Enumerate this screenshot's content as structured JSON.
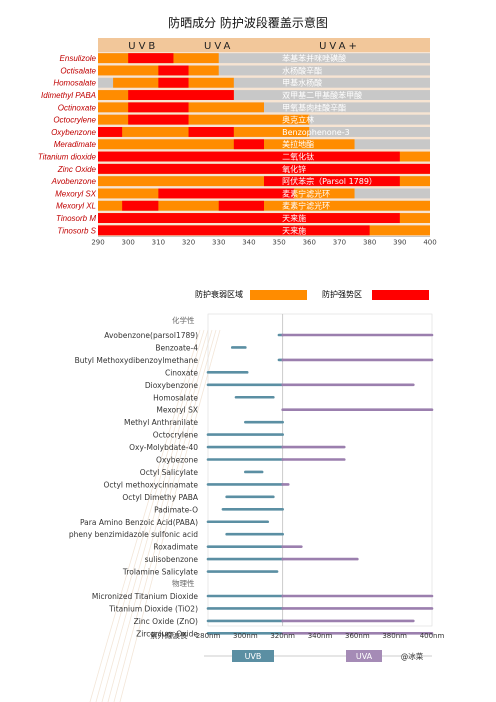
{
  "title": "防晒成分  防护波段覆盖示意图",
  "chart_data": [
    {
      "type": "bar",
      "subtype": "range-gantt",
      "band_headers": [
        {
          "label": "UVB",
          "from": 290,
          "to": 320
        },
        {
          "label": "UVA",
          "from": 320,
          "to": 340
        },
        {
          "label": "UVA+",
          "from": 340,
          "to": 400
        }
      ],
      "x_ticks": [
        290,
        300,
        310,
        320,
        330,
        340,
        350,
        360,
        370,
        380,
        390,
        400
      ],
      "xlim": [
        290,
        400
      ],
      "legend": [
        {
          "label": "防护衰弱区域",
          "color": "#ff8c00"
        },
        {
          "label": "防护强势区",
          "color": "#ff0000"
        }
      ],
      "rows": [
        {
          "name": "Ensulizole",
          "cn": "苯基苯并咪唑磺酸",
          "weak": [
            [
              290,
              330
            ]
          ],
          "strong": [
            [
              300,
              315
            ]
          ]
        },
        {
          "name": "Octisalate",
          "cn": "水杨酸辛酯",
          "weak": [
            [
              290,
              330
            ]
          ],
          "strong": [
            [
              310,
              320
            ]
          ]
        },
        {
          "name": "Homosalate",
          "cn": "甲基水杨酸",
          "weak": [
            [
              295,
              335
            ]
          ],
          "strong": [
            [
              310,
              320
            ]
          ]
        },
        {
          "name": "Idimethyl PABA",
          "cn": "双甲基二甲基酸苯甲酸",
          "weak": [
            [
              290,
              335
            ]
          ],
          "strong": [
            [
              300,
              335
            ]
          ]
        },
        {
          "name": "Octinoxate",
          "cn": "甲氧基肉桂酸辛酯",
          "weak": [
            [
              290,
              345
            ]
          ],
          "strong": [
            [
              300,
              320
            ]
          ]
        },
        {
          "name": "Octocrylene",
          "cn": "奥克立林",
          "weak": [
            [
              290,
              360
            ]
          ],
          "strong": [
            [
              300,
              320
            ]
          ]
        },
        {
          "name": "Oxybenzone",
          "cn": "Benzophenone-3",
          "weak": [
            [
              290,
              360
            ]
          ],
          "strong": [
            [
              290,
              298
            ],
            [
              320,
              335
            ]
          ]
        },
        {
          "name": "Meradimate",
          "cn": "美拉地酯",
          "weak": [
            [
              290,
              375
            ]
          ],
          "strong": [
            [
              335,
              345
            ]
          ]
        },
        {
          "name": "Titanium dioxide",
          "cn": "二氧化钛",
          "weak": [
            [
              290,
              400
            ]
          ],
          "strong": [
            [
              290,
              390
            ]
          ]
        },
        {
          "name": "Zinc Oxide",
          "cn": "氧化锌",
          "weak": [
            [
              290,
              400
            ]
          ],
          "strong": [
            [
              290,
              400
            ]
          ]
        },
        {
          "name": "Avobenzone",
          "cn": "阿伏苯宗（Parsol 1789）",
          "weak": [
            [
              290,
              400
            ]
          ],
          "strong": [
            [
              345,
              390
            ]
          ]
        },
        {
          "name": "Mexoryl SX",
          "cn": "麦素宁滤光环",
          "weak": [
            [
              290,
              375
            ]
          ],
          "strong": [
            [
              310,
              355
            ]
          ]
        },
        {
          "name": "Mexoryl XL",
          "cn": "麦素宁滤光环",
          "weak": [
            [
              290,
              400
            ]
          ],
          "strong": [
            [
              298,
              310
            ],
            [
              330,
              345
            ]
          ]
        },
        {
          "name": "Tinosorb M",
          "cn": "天来施",
          "weak": [
            [
              290,
              400
            ]
          ],
          "strong": [
            [
              290,
              390
            ]
          ]
        },
        {
          "name": "Tinosorb S",
          "cn": "天来施",
          "weak": [
            [
              290,
              400
            ]
          ],
          "strong": [
            [
              290,
              380
            ]
          ]
        }
      ]
    },
    {
      "type": "bar",
      "subtype": "range-lines",
      "group_chemical": "化学性",
      "group_physical": "物理性",
      "xlabel": "紫外線波長",
      "x_ticks": [
        "280nm",
        "300nm",
        "320nm",
        "340nm",
        "360nm",
        "380nm",
        "400nm"
      ],
      "xlim": [
        280,
        400
      ],
      "bands": [
        {
          "label": "UVB",
          "from": 280,
          "to": 320
        },
        {
          "label": "UVA",
          "from": 320,
          "to": 400
        }
      ],
      "watermark": "@冰菜",
      "rows": [
        {
          "name": "Avobenzone(parsol1789)",
          "from": 318,
          "to": 400
        },
        {
          "name": "Benzoate-4",
          "from": 293,
          "to": 300
        },
        {
          "name": "Butyl Methoxydibenzoylmethane",
          "from": 318,
          "to": 400
        },
        {
          "name": "Cinoxate",
          "from": 280,
          "to": 301
        },
        {
          "name": "Dioxybenzone",
          "from": 280,
          "to": 390
        },
        {
          "name": "Homosalate",
          "from": 295,
          "to": 315
        },
        {
          "name": "Mexoryl SX",
          "from": 320,
          "to": 400
        },
        {
          "name": "Methyl Anthranilate",
          "from": 300,
          "to": 320
        },
        {
          "name": "Octocrylene",
          "from": 280,
          "to": 320
        },
        {
          "name": "Oxy-Molybdate-40",
          "from": 280,
          "to": 353
        },
        {
          "name": "Oxybezone",
          "from": 280,
          "to": 353
        },
        {
          "name": "Octyl Salicylate",
          "from": 300,
          "to": 309
        },
        {
          "name": "Octyl methoxycinnamate",
          "from": 280,
          "to": 323
        },
        {
          "name": "Octyl Dimethy PABA",
          "from": 290,
          "to": 315
        },
        {
          "name": "Padimate-O",
          "from": 288,
          "to": 320
        },
        {
          "name": "Para Amino Benzoic Acid(PABA)",
          "from": 280,
          "to": 312
        },
        {
          "name": "pheny benzimidazole sulfonic acid",
          "from": 290,
          "to": 320
        },
        {
          "name": "Roxadimate",
          "from": 280,
          "to": 330
        },
        {
          "name": "sulisobenzone",
          "from": 280,
          "to": 360
        },
        {
          "name": "Trolamine Salicylate",
          "from": 280,
          "to": 317
        },
        {
          "name": "Micronized Titanium Dioxide",
          "from": 280,
          "to": 400
        },
        {
          "name": "Titanium Dioxide (TiO2)",
          "from": 280,
          "to": 400
        },
        {
          "name": "Zinc Oxide (ZnO)",
          "from": 280,
          "to": 390
        },
        {
          "name": "Zirconium Oxide",
          "from": 280,
          "to": 400
        }
      ]
    }
  ]
}
